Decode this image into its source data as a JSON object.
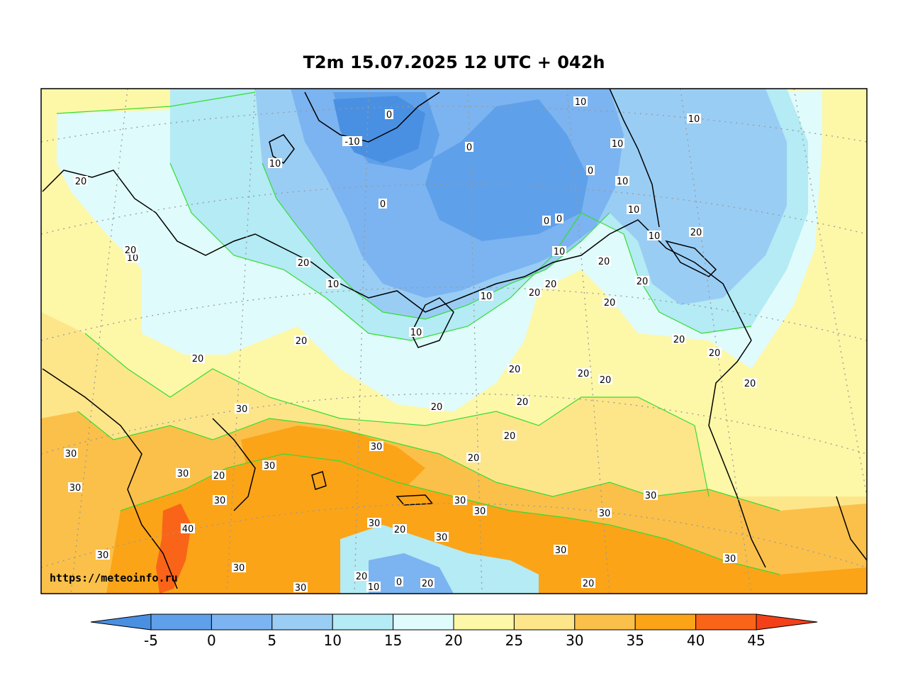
{
  "title": "T2m 15.07.2025 12 UTC + 042h",
  "watermark": "https://meteoinfo.ru",
  "colorbar": {
    "ticks": [
      "-5",
      "0",
      "5",
      "10",
      "15",
      "20",
      "25",
      "30",
      "35",
      "40",
      "45"
    ],
    "colors": [
      "#4a90e2",
      "#5fa0ea",
      "#7bb4f0",
      "#9acdf4",
      "#b4ebf4",
      "#e0fbfb",
      "#fdf7a8",
      "#fde68a",
      "#fbc04a",
      "#fba418",
      "#fa6418",
      "#f44018"
    ],
    "extend": "both"
  },
  "labels": [
    {
      "t": "0"
    },
    {
      "t": "-10"
    },
    {
      "t": "0"
    },
    {
      "t": "10"
    },
    {
      "t": "10"
    },
    {
      "t": "10"
    },
    {
      "t": "0"
    },
    {
      "t": "10"
    },
    {
      "t": "10"
    },
    {
      "t": "0"
    },
    {
      "t": "10"
    },
    {
      "t": "10"
    },
    {
      "t": "0"
    },
    {
      "t": "0"
    },
    {
      "t": "20"
    },
    {
      "t": "10"
    },
    {
      "t": "20"
    },
    {
      "t": "10"
    },
    {
      "t": "20"
    },
    {
      "t": "10"
    },
    {
      "t": "20"
    },
    {
      "t": "10"
    },
    {
      "t": "20"
    },
    {
      "t": "20"
    },
    {
      "t": "20"
    },
    {
      "t": "20"
    },
    {
      "t": "20"
    },
    {
      "t": "20"
    },
    {
      "t": "20"
    },
    {
      "t": "10"
    },
    {
      "t": "20"
    },
    {
      "t": "20"
    },
    {
      "t": "20"
    },
    {
      "t": "20"
    },
    {
      "t": "20"
    },
    {
      "t": "20"
    },
    {
      "t": "30"
    },
    {
      "t": "20"
    },
    {
      "t": "20"
    },
    {
      "t": "30"
    },
    {
      "t": "30"
    },
    {
      "t": "30"
    },
    {
      "t": "20"
    },
    {
      "t": "30"
    },
    {
      "t": "30"
    },
    {
      "t": "30"
    },
    {
      "t": "30"
    },
    {
      "t": "40"
    },
    {
      "t": "30"
    },
    {
      "t": "20"
    },
    {
      "t": "30"
    },
    {
      "t": "30"
    },
    {
      "t": "30"
    },
    {
      "t": "30"
    },
    {
      "t": "20"
    },
    {
      "t": "30"
    },
    {
      "t": "20"
    },
    {
      "t": "30"
    },
    {
      "t": "20"
    },
    {
      "t": "10"
    },
    {
      "t": "0"
    },
    {
      "t": "20"
    },
    {
      "t": "20"
    },
    {
      "t": "30"
    },
    {
      "t": "30"
    },
    {
      "t": "30"
    }
  ]
}
